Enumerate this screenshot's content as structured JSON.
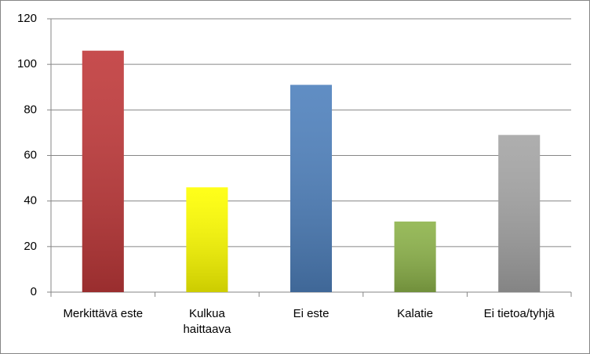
{
  "chart_data": {
    "type": "bar",
    "categories": [
      "Merkittävä este",
      "Kulkua haittaava",
      "Ei este",
      "Kalatie",
      "Ei tietoa/tyhjä"
    ],
    "values": [
      106,
      46,
      91,
      31,
      69
    ],
    "colors": [
      "#c0393a",
      "#ffff00",
      "#4f81bd",
      "#8db34a",
      "#a5a5a5"
    ],
    "ylim": [
      0,
      120
    ],
    "yticks": [
      0,
      20,
      40,
      60,
      80,
      100,
      120
    ],
    "grid": true
  }
}
